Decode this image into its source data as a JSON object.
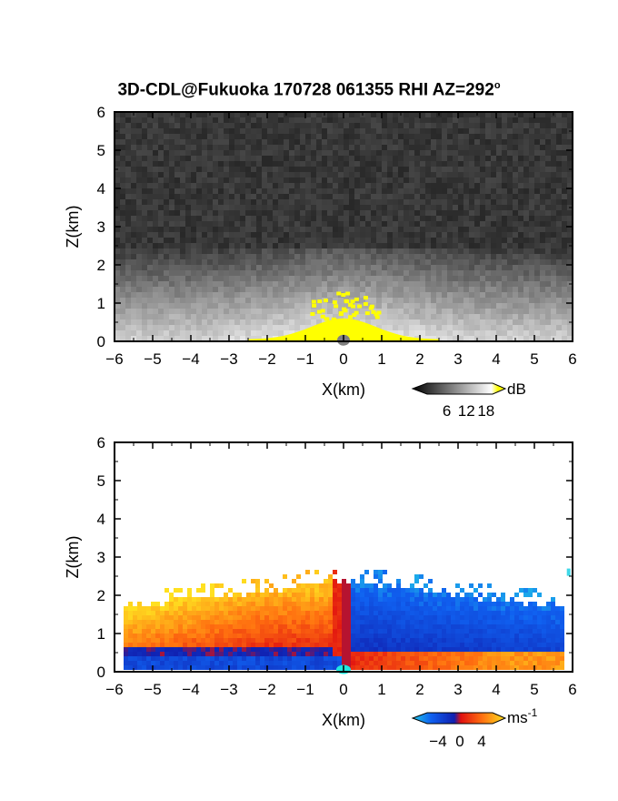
{
  "header": {
    "title": "3D-CDL@Fukuoka 170728 061355 RHI AZ=292",
    "title_sup": "o"
  },
  "chart_data": [
    {
      "type": "heatmap",
      "name": "snr",
      "xlabel": "X(km)",
      "ylabel": "Z(km)",
      "xlim": [
        -6,
        6
      ],
      "ylim": [
        0,
        6
      ],
      "x_ticks": [
        "-6",
        "-5",
        "-4",
        "-3",
        "-2",
        "-1",
        "0",
        "1",
        "2",
        "3",
        "4",
        "5",
        "6"
      ],
      "y_ticks": [
        "0",
        "1",
        "2",
        "3",
        "4",
        "5",
        "6"
      ],
      "colorbar": {
        "unit": "dB",
        "ticks": [
          "6",
          "12",
          "18"
        ],
        "range": [
          0,
          20
        ],
        "colors": [
          "#000000",
          "#ffffff",
          "#ffff00"
        ]
      }
    },
    {
      "type": "heatmap",
      "name": "doppler-velocity",
      "xlabel": "X(km)",
      "ylabel": "Z(km)",
      "xlim": [
        -6,
        6
      ],
      "ylim": [
        0,
        6
      ],
      "x_ticks": [
        "-6",
        "-5",
        "-4",
        "-3",
        "-2",
        "-1",
        "0",
        "1",
        "2",
        "3",
        "4",
        "5",
        "6"
      ],
      "y_ticks": [
        "0",
        "1",
        "2",
        "3",
        "4",
        "5",
        "6"
      ],
      "colorbar": {
        "unit": "ms",
        "unit_sup": "-1",
        "ticks": [
          "-4",
          "0",
          "4"
        ],
        "range": [
          -6,
          6
        ],
        "colors": [
          "#20c8e8",
          "#1060f0",
          "#1020b0",
          "#e01010",
          "#ff7010",
          "#ffe020"
        ]
      }
    }
  ]
}
